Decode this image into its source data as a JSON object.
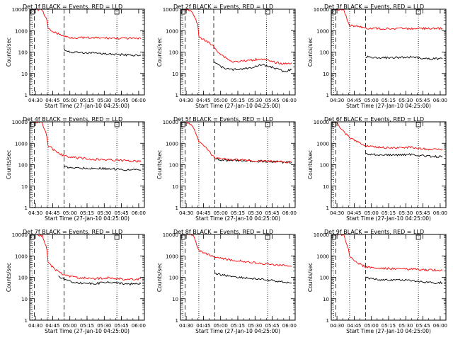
{
  "colors": {
    "events": "#000000",
    "lld": "#ff0000",
    "axes": "#000000",
    "background": "#ffffff"
  },
  "chart_data": [
    {
      "type": "line",
      "title": "Det 1f BLACK = Events, RED = LLD",
      "xlabel": "Start Time (27-Jan-10 04:25:00)",
      "ylabel": "Counts/sec",
      "x_unit": "HH:MM",
      "xlim": [
        "04:25",
        "06:05"
      ],
      "xticks": [
        "04:30",
        "04:45",
        "05:00",
        "05:15",
        "05:30",
        "05:45",
        "06:00"
      ],
      "ylim": [
        1,
        10000
      ],
      "yscale": "log",
      "yticks": [
        "1",
        "10",
        "100",
        "1000",
        "10000"
      ],
      "dotted_lines": [
        "04:27",
        "04:41",
        "05:41"
      ],
      "dashed_lines": [
        "04:29",
        "04:55"
      ],
      "series": [
        {
          "name": "Events",
          "color": "#000000",
          "points": [
            [
              "04:55",
              130
            ],
            [
              "05:00",
              100
            ],
            [
              "05:15",
              90
            ],
            [
              "05:30",
              85
            ],
            [
              "05:45",
              75
            ],
            [
              "06:02",
              70
            ]
          ]
        },
        {
          "name": "LLD",
          "color": "#ff0000",
          "points": [
            [
              "04:29",
              10000
            ],
            [
              "04:36",
              9000
            ],
            [
              "04:40",
              3000
            ],
            [
              "04:41",
              1200
            ],
            [
              "04:50",
              700
            ],
            [
              "04:55",
              550
            ],
            [
              "05:00",
              480
            ],
            [
              "05:15",
              460
            ],
            [
              "05:30",
              450
            ],
            [
              "05:45",
              440
            ],
            [
              "06:02",
              420
            ]
          ]
        }
      ]
    },
    {
      "type": "line",
      "title": "Det 2f BLACK = Events, RED = LLD",
      "xlabel": "Start Time (27-Jan-10 04:25:00)",
      "ylabel": "Counts/sec",
      "x_unit": "HH:MM",
      "xlim": [
        "04:25",
        "06:05"
      ],
      "xticks": [
        "04:30",
        "04:45",
        "05:00",
        "05:15",
        "05:30",
        "05:45",
        "06:00"
      ],
      "ylim": [
        1,
        10000
      ],
      "yscale": "log",
      "yticks": [
        "1",
        "10",
        "100",
        "1000",
        "10000"
      ],
      "dotted_lines": [
        "04:27",
        "04:41",
        "05:40"
      ],
      "dashed_lines": [
        "04:29",
        "04:54"
      ],
      "series": [
        {
          "name": "Events",
          "color": "#000000",
          "points": [
            [
              "04:54",
              40
            ],
            [
              "05:00",
              20
            ],
            [
              "05:10",
              15
            ],
            [
              "05:25",
              18
            ],
            [
              "05:35",
              25
            ],
            [
              "05:45",
              20
            ],
            [
              "05:55",
              12
            ],
            [
              "06:02",
              15
            ]
          ]
        },
        {
          "name": "LLD",
          "color": "#ff0000",
          "points": [
            [
              "04:29",
              10000
            ],
            [
              "04:35",
              8000
            ],
            [
              "04:40",
              2000
            ],
            [
              "04:41",
              500
            ],
            [
              "04:47",
              350
            ],
            [
              "04:53",
              200
            ],
            [
              "05:00",
              80
            ],
            [
              "05:10",
              35
            ],
            [
              "05:25",
              40
            ],
            [
              "05:35",
              50
            ],
            [
              "05:45",
              35
            ],
            [
              "05:55",
              28
            ],
            [
              "06:02",
              32
            ]
          ]
        }
      ]
    },
    {
      "type": "line",
      "title": "Det 3f BLACK = Events, RED = LLD",
      "xlabel": "Start Time (27-Jan-10 04:25:00)",
      "ylabel": "Counts/sec",
      "x_unit": "HH:MM",
      "xlim": [
        "04:25",
        "06:05"
      ],
      "xticks": [
        "04:30",
        "04:45",
        "05:00",
        "05:15",
        "05:30",
        "05:45",
        "06:00"
      ],
      "ylim": [
        1,
        10000
      ],
      "yscale": "log",
      "yticks": [
        "1",
        "10",
        "100",
        "1000",
        "10000"
      ],
      "dotted_lines": [
        "04:27",
        "04:41",
        "05:41"
      ],
      "dashed_lines": [
        "04:29",
        "04:55"
      ],
      "series": [
        {
          "name": "Events",
          "color": "#000000",
          "points": [
            [
              "04:55",
              60
            ],
            [
              "05:05",
              52
            ],
            [
              "05:20",
              55
            ],
            [
              "05:35",
              58
            ],
            [
              "05:45",
              50
            ],
            [
              "06:02",
              48
            ]
          ]
        },
        {
          "name": "LLD",
          "color": "#ff0000",
          "points": [
            [
              "04:29",
              10000
            ],
            [
              "04:36",
              9500
            ],
            [
              "04:39",
              3000
            ],
            [
              "04:41",
              1800
            ],
            [
              "04:50",
              1500
            ],
            [
              "04:55",
              1300
            ],
            [
              "05:05",
              1250
            ],
            [
              "05:30",
              1250
            ],
            [
              "06:02",
              1250
            ]
          ]
        }
      ]
    },
    {
      "type": "line",
      "title": "Det 4f BLACK = Events, RED = LLD",
      "xlabel": "Start Time (27-Jan-10 04:25:00)",
      "ylabel": "Counts/sec",
      "x_unit": "HH:MM",
      "xlim": [
        "04:25",
        "06:05"
      ],
      "xticks": [
        "04:30",
        "04:45",
        "05:00",
        "05:15",
        "05:30",
        "05:45",
        "06:00"
      ],
      "ylim": [
        1,
        10000
      ],
      "yscale": "log",
      "yticks": [
        "1",
        "10",
        "100",
        "1000",
        "10000"
      ],
      "dotted_lines": [
        "04:27",
        "04:41",
        "05:41"
      ],
      "dashed_lines": [
        "04:29",
        "04:55"
      ],
      "series": [
        {
          "name": "Events",
          "color": "#000000",
          "points": [
            [
              "04:55",
              80
            ],
            [
              "05:05",
              70
            ],
            [
              "05:20",
              68
            ],
            [
              "05:35",
              65
            ],
            [
              "05:50",
              58
            ],
            [
              "06:02",
              55
            ]
          ]
        },
        {
          "name": "LLD",
          "color": "#ff0000",
          "points": [
            [
              "04:29",
              10000
            ],
            [
              "04:36",
              9000
            ],
            [
              "04:40",
              2000
            ],
            [
              "04:41",
              800
            ],
            [
              "04:50",
              330
            ],
            [
              "04:55",
              260
            ],
            [
              "05:05",
              210
            ],
            [
              "05:20",
              180
            ],
            [
              "05:35",
              170
            ],
            [
              "05:50",
              150
            ],
            [
              "06:02",
              140
            ]
          ]
        }
      ]
    },
    {
      "type": "line",
      "title": "Det 5f BLACK = Events, RED = LLD",
      "xlabel": "Start Time (27-Jan-10 04:25:00)",
      "ylabel": "Counts/sec",
      "x_unit": "HH:MM",
      "xlim": [
        "04:25",
        "06:05"
      ],
      "xticks": [
        "04:30",
        "04:45",
        "05:00",
        "05:15",
        "05:30",
        "05:45",
        "06:00"
      ],
      "ylim": [
        1,
        10000
      ],
      "yscale": "log",
      "yticks": [
        "1",
        "10",
        "100",
        "1000",
        "10000"
      ],
      "dotted_lines": [
        "04:27",
        "04:41",
        "05:41"
      ],
      "dashed_lines": [
        "04:29",
        "04:55"
      ],
      "series": [
        {
          "name": "Events",
          "color": "#000000",
          "points": [
            [
              "04:55",
              180
            ],
            [
              "05:05",
              165
            ],
            [
              "05:20",
              155
            ],
            [
              "05:35",
              145
            ],
            [
              "05:50",
              135
            ],
            [
              "06:02",
              125
            ]
          ]
        },
        {
          "name": "LLD",
          "color": "#ff0000",
          "points": [
            [
              "04:29",
              10000
            ],
            [
              "04:35",
              7000
            ],
            [
              "04:39",
              2500
            ],
            [
              "04:41",
              1200
            ],
            [
              "04:47",
              600
            ],
            [
              "04:52",
              300
            ],
            [
              "04:55",
              200
            ],
            [
              "05:05",
              175
            ],
            [
              "05:20",
              165
            ],
            [
              "05:35",
              150
            ],
            [
              "05:50",
              140
            ],
            [
              "06:02",
              130
            ]
          ]
        }
      ]
    },
    {
      "type": "line",
      "title": "Det 6f BLACK = Events, RED = LLD",
      "xlabel": "Start Time (27-Jan-10 04:25:00)",
      "ylabel": "Counts/sec",
      "x_unit": "HH:MM",
      "xlim": [
        "04:25",
        "06:05"
      ],
      "xticks": [
        "04:30",
        "04:45",
        "05:00",
        "05:15",
        "05:30",
        "05:45",
        "06:00"
      ],
      "ylim": [
        1,
        10000
      ],
      "yscale": "log",
      "yticks": [
        "1",
        "10",
        "100",
        "1000",
        "10000"
      ],
      "dotted_lines": [
        "04:27",
        "04:41",
        "05:41"
      ],
      "dashed_lines": [
        "04:29",
        "04:55"
      ],
      "series": [
        {
          "name": "Events",
          "color": "#000000",
          "points": [
            [
              "04:55",
              320
            ],
            [
              "05:05",
              290
            ],
            [
              "05:20",
              280
            ],
            [
              "05:35",
              300
            ],
            [
              "05:45",
              260
            ],
            [
              "06:02",
              230
            ]
          ]
        },
        {
          "name": "LLD",
          "color": "#ff0000",
          "points": [
            [
              "04:29",
              10000
            ],
            [
              "04:35",
              4000
            ],
            [
              "04:41",
              1800
            ],
            [
              "04:50",
              1000
            ],
            [
              "04:55",
              800
            ],
            [
              "05:05",
              650
            ],
            [
              "05:20",
              600
            ],
            [
              "05:35",
              650
            ],
            [
              "05:45",
              550
            ],
            [
              "06:02",
              520
            ]
          ]
        }
      ]
    },
    {
      "type": "line",
      "title": "Det 7f BLACK = Events, RED = LLD",
      "xlabel": "Start Time (27-Jan-10 04:25:00)",
      "ylabel": "Counts/sec",
      "x_unit": "HH:MM",
      "xlim": [
        "04:25",
        "06:05"
      ],
      "xticks": [
        "04:30",
        "04:45",
        "05:00",
        "05:15",
        "05:30",
        "05:45",
        "06:00"
      ],
      "ylim": [
        1,
        10000
      ],
      "yscale": "log",
      "yticks": [
        "1",
        "10",
        "100",
        "1000",
        "10000"
      ],
      "dotted_lines": [
        "04:27",
        "04:41",
        "05:41"
      ],
      "dashed_lines": [
        "04:29",
        "04:55"
      ],
      "series": [
        {
          "name": "Events",
          "color": "#000000",
          "points": [
            [
              "04:50",
              110
            ],
            [
              "04:55",
              80
            ],
            [
              "05:05",
              55
            ],
            [
              "05:20",
              50
            ],
            [
              "05:35",
              60
            ],
            [
              "05:50",
              48
            ],
            [
              "06:02",
              50
            ]
          ]
        },
        {
          "name": "LLD",
          "color": "#ff0000",
          "points": [
            [
              "04:29",
              10000
            ],
            [
              "04:36",
              9000
            ],
            [
              "04:40",
              2000
            ],
            [
              "04:41",
              500
            ],
            [
              "04:45",
              300
            ],
            [
              "04:50",
              180
            ],
            [
              "04:55",
              130
            ],
            [
              "05:05",
              100
            ],
            [
              "05:20",
              85
            ],
            [
              "05:35",
              95
            ],
            [
              "05:50",
              80
            ],
            [
              "06:02",
              85
            ]
          ]
        }
      ]
    },
    {
      "type": "line",
      "title": "Det 8f BLACK = Events, RED = LLD",
      "xlabel": "Start Time (27-Jan-10 04:25:00)",
      "ylabel": "Counts/sec",
      "x_unit": "HH:MM",
      "xlim": [
        "04:25",
        "06:05"
      ],
      "xticks": [
        "04:30",
        "04:45",
        "05:00",
        "05:15",
        "05:30",
        "05:45",
        "06:00"
      ],
      "ylim": [
        1,
        10000
      ],
      "yscale": "log",
      "yticks": [
        "1",
        "10",
        "100",
        "1000",
        "10000"
      ],
      "dotted_lines": [
        "04:27",
        "04:41",
        "05:41"
      ],
      "dashed_lines": [
        "04:29",
        "04:55"
      ],
      "series": [
        {
          "name": "Events",
          "color": "#000000",
          "points": [
            [
              "04:55",
              150
            ],
            [
              "05:05",
              120
            ],
            [
              "05:20",
              95
            ],
            [
              "05:35",
              80
            ],
            [
              "05:50",
              65
            ],
            [
              "06:02",
              55
            ]
          ]
        },
        {
          "name": "LLD",
          "color": "#ff0000",
          "points": [
            [
              "04:29",
              10000
            ],
            [
              "04:36",
              9000
            ],
            [
              "04:40",
              2500
            ],
            [
              "04:41",
              1800
            ],
            [
              "04:50",
              1100
            ],
            [
              "04:55",
              900
            ],
            [
              "05:05",
              700
            ],
            [
              "05:20",
              550
            ],
            [
              "05:35",
              450
            ],
            [
              "05:50",
              380
            ],
            [
              "06:02",
              320
            ]
          ]
        }
      ]
    },
    {
      "type": "line",
      "title": "Det 9f BLACK = Events, RED = LLD",
      "xlabel": "Start Time (27-Jan-10 04:25:00)",
      "ylabel": "Counts/sec",
      "x_unit": "HH:MM",
      "xlim": [
        "04:25",
        "06:05"
      ],
      "xticks": [
        "04:30",
        "04:45",
        "05:00",
        "05:15",
        "05:30",
        "05:45",
        "06:00"
      ],
      "ylim": [
        1,
        10000
      ],
      "yscale": "log",
      "yticks": [
        "1",
        "10",
        "100",
        "1000",
        "10000"
      ],
      "dotted_lines": [
        "04:27",
        "04:41",
        "05:41"
      ],
      "dashed_lines": [
        "04:29",
        "04:55"
      ],
      "series": [
        {
          "name": "Events",
          "color": "#000000",
          "points": [
            [
              "04:55",
              95
            ],
            [
              "05:05",
              80
            ],
            [
              "05:20",
              75
            ],
            [
              "05:35",
              72
            ],
            [
              "05:45",
              60
            ],
            [
              "06:02",
              55
            ]
          ]
        },
        {
          "name": "LLD",
          "color": "#ff0000",
          "points": [
            [
              "04:29",
              10000
            ],
            [
              "04:36",
              9000
            ],
            [
              "04:40",
              2000
            ],
            [
              "04:41",
              900
            ],
            [
              "04:50",
              420
            ],
            [
              "04:55",
              300
            ],
            [
              "05:05",
              260
            ],
            [
              "05:20",
              250
            ],
            [
              "05:35",
              240
            ],
            [
              "05:45",
              225
            ],
            [
              "06:02",
              215
            ]
          ]
        }
      ]
    }
  ]
}
